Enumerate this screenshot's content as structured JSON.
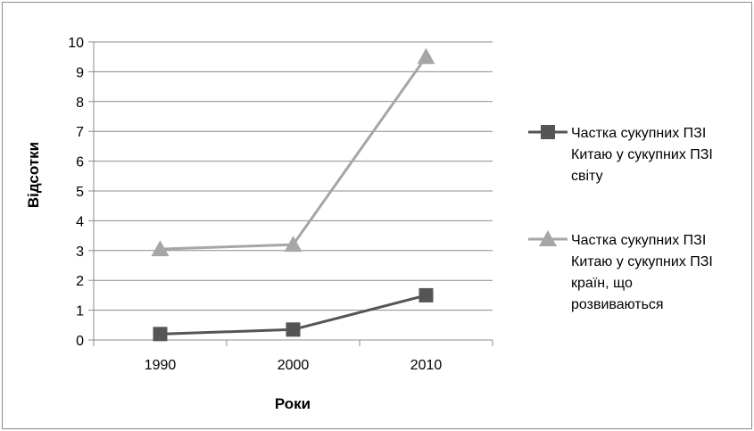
{
  "chart_data": {
    "type": "line",
    "categories": [
      "1990",
      "2000",
      "2010"
    ],
    "xlabel": "Роки",
    "ylabel": "Відсотки",
    "ylim": [
      0,
      10
    ],
    "yticks": [
      "0",
      "1",
      "2",
      "3",
      "4",
      "5",
      "6",
      "7",
      "8",
      "9",
      "10"
    ],
    "grid": true,
    "legend_position": "right",
    "series": [
      {
        "name_lines": [
          "Частка сукупних ПЗІ",
          "Китаю у сукупних ПЗІ",
          "світу"
        ],
        "values": [
          0.2,
          0.35,
          1.5
        ],
        "marker": "square",
        "color": "#555555"
      },
      {
        "name_lines": [
          "Частка сукупних ПЗІ",
          "Китаю у сукупних ПЗІ",
          "країн, що",
          "розвиваються"
        ],
        "values": [
          3.05,
          3.2,
          9.5
        ],
        "marker": "triangle",
        "color": "#a6a6a6"
      }
    ]
  }
}
